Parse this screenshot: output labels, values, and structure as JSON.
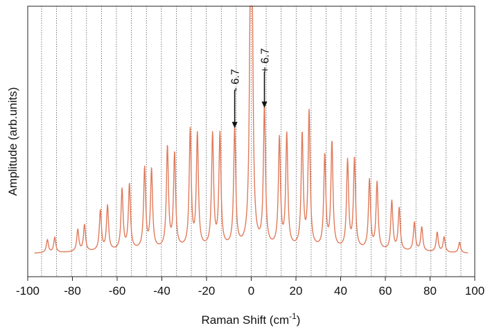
{
  "chart_data": {
    "type": "line",
    "title": "",
    "xlabel": "Raman Shift (cm",
    "xlabel_sup": "-1",
    "xlabel_close": ")",
    "ylabel": "Amplitude (arb.units)",
    "xlim": [
      -100,
      100
    ],
    "ylim": [
      0,
      1
    ],
    "grid": "vertical dotted lines every 6.7 cm-1",
    "grid_step": 6.7,
    "x_ticks": [
      -100,
      -80,
      -60,
      -40,
      -20,
      0,
      20,
      40,
      60,
      80,
      100
    ],
    "x_tick_labels": [
      "-100",
      "-80",
      "-60",
      "-40",
      "-20",
      "0",
      "20",
      "40",
      "60",
      "80",
      "100"
    ],
    "baseline": 0.075,
    "series": [
      {
        "color": "#e07a5a",
        "peaks": [
          {
            "x": -91.2,
            "y": 0.11
          },
          {
            "x": -87.9,
            "y": 0.12
          },
          {
            "x": -77.6,
            "y": 0.15
          },
          {
            "x": -74.6,
            "y": 0.17
          },
          {
            "x": -67.5,
            "y": 0.23
          },
          {
            "x": -64.3,
            "y": 0.25
          },
          {
            "x": -57.8,
            "y": 0.32
          },
          {
            "x": -54.5,
            "y": 0.34
          },
          {
            "x": -47.7,
            "y": 0.41
          },
          {
            "x": -44.6,
            "y": 0.4
          },
          {
            "x": -37.5,
            "y": 0.5
          },
          {
            "x": -34.3,
            "y": 0.47
          },
          {
            "x": -27.3,
            "y": 0.57
          },
          {
            "x": -24.1,
            "y": 0.55
          },
          {
            "x": -17.3,
            "y": 0.55
          },
          {
            "x": -14.0,
            "y": 0.55
          },
          {
            "x": -7.4,
            "y": 0.58
          },
          {
            "x": -0.3,
            "y": 1.08
          },
          {
            "x": 0.3,
            "y": 1.08
          },
          {
            "x": 5.9,
            "y": 0.67
          },
          {
            "x": 12.6,
            "y": 0.53
          },
          {
            "x": 15.9,
            "y": 0.55
          },
          {
            "x": 22.8,
            "y": 0.55
          },
          {
            "x": 25.9,
            "y": 0.65
          },
          {
            "x": 32.9,
            "y": 0.46
          },
          {
            "x": 36.1,
            "y": 0.52
          },
          {
            "x": 43.1,
            "y": 0.44
          },
          {
            "x": 46.2,
            "y": 0.45
          },
          {
            "x": 52.9,
            "y": 0.36
          },
          {
            "x": 56.3,
            "y": 0.35
          },
          {
            "x": 62.9,
            "y": 0.27
          },
          {
            "x": 66.2,
            "y": 0.24
          },
          {
            "x": 73.0,
            "y": 0.18
          },
          {
            "x": 76.3,
            "y": 0.16
          },
          {
            "x": 83.2,
            "y": 0.14
          },
          {
            "x": 86.3,
            "y": 0.12
          },
          {
            "x": 93.2,
            "y": 0.1
          }
        ]
      }
    ],
    "annotations": [
      {
        "text": "- 6.7",
        "x": -7.4,
        "arrow_tip_y": 0.61,
        "arrow_top_y": 0.78,
        "label_y": 0.88
      },
      {
        "text": "+ 6.7",
        "x": 5.9,
        "arrow_tip_y": 0.7,
        "arrow_top_y": 0.86,
        "label_y": 1.0
      }
    ]
  }
}
